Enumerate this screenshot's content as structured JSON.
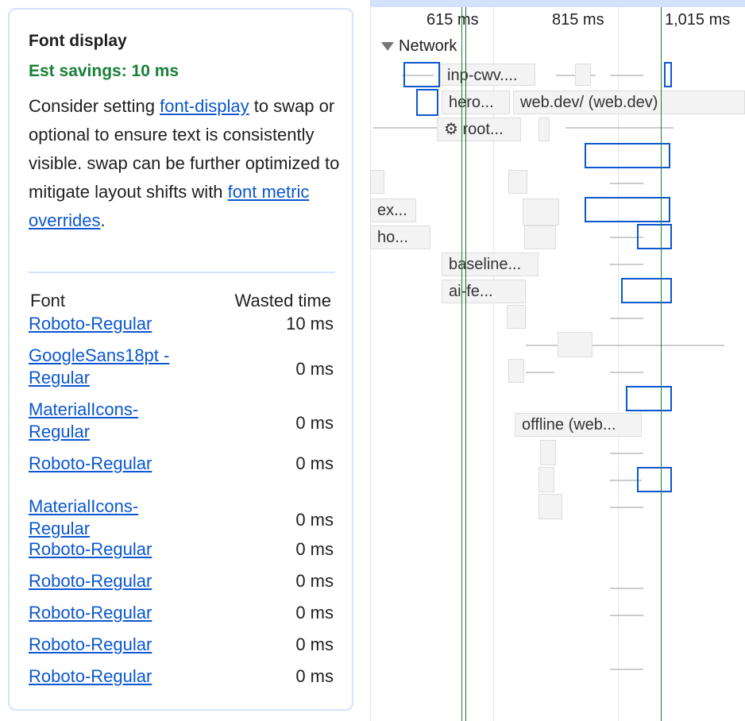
{
  "panel": {
    "title": "Font display",
    "savings": "Est savings: 10 ms",
    "desc_1": "Consider setting ",
    "desc_link_1": "font-display",
    "desc_2": " to swap or optional to ensure text is consistently visible. swap can be further optimized to mitigate layout shifts with ",
    "desc_link_2": "font metric overrides",
    "desc_3": ".",
    "col_font": "Font",
    "col_wasted": "Wasted time",
    "rows": [
      {
        "font": "Roboto-Regular",
        "wasted": "10 ms"
      },
      {
        "font": "GoogleSans18pt -Regular",
        "wasted": "0 ms"
      },
      {
        "font": "MaterialIcons- Regular",
        "wasted": "0 ms"
      },
      {
        "font": "Roboto-Regular",
        "wasted": "0 ms"
      },
      {
        "font": "MaterialIcons- Regular",
        "wasted": "0 ms"
      },
      {
        "font": "Roboto-Regular",
        "wasted": "0 ms"
      },
      {
        "font": "Roboto-Regular",
        "wasted": "0 ms"
      },
      {
        "font": "Roboto-Regular",
        "wasted": "0 ms"
      },
      {
        "font": "Roboto-Regular",
        "wasted": "0 ms"
      },
      {
        "font": "Roboto-Regular",
        "wasted": "0 ms"
      }
    ]
  },
  "timeline": {
    "ticks": [
      "615 ms",
      "815 ms",
      "1,015 ms"
    ],
    "track": "Network",
    "labels": [
      "inp-cwv....",
      "hero...",
      "web.dev/ (web.dev)",
      "⚙ root...",
      "ex...",
      "ho...",
      "baseline...",
      "ai-fe...",
      "offline (web..."
    ],
    "colors": {
      "marker": "#188038",
      "selection": "#0b57d0",
      "link": "#0b57d0"
    }
  }
}
